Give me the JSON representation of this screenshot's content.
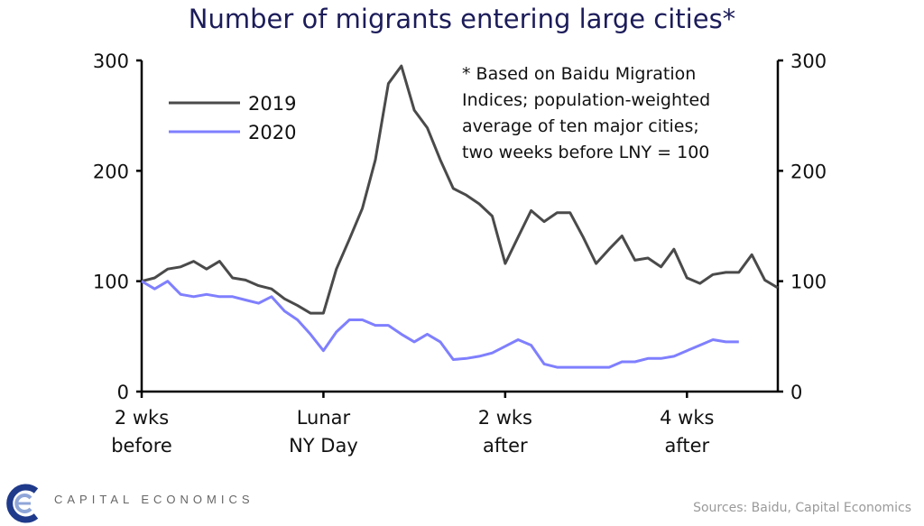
{
  "chart_data": {
    "type": "line",
    "title": "Number of migrants entering large cities*",
    "xlabel": "",
    "ylabel": "",
    "ylim": [
      0,
      300
    ],
    "xlim": [
      0,
      49
    ],
    "yticks": [
      0,
      100,
      200,
      300
    ],
    "xticks": [
      {
        "x": 0,
        "label": [
          "2 wks",
          "before"
        ]
      },
      {
        "x": 14,
        "label": [
          "Lunar",
          "NY Day"
        ]
      },
      {
        "x": 28,
        "label": [
          "2 wks",
          "after"
        ]
      },
      {
        "x": 42,
        "label": [
          "4 wks",
          "after"
        ]
      }
    ],
    "grid": false,
    "legend_position": "top-left",
    "series": [
      {
        "name": "2019",
        "color": "#4a4a4a",
        "values": [
          100,
          103,
          111,
          113,
          118,
          111,
          118,
          103,
          101,
          96,
          93,
          84,
          78,
          71,
          71,
          111,
          138,
          166,
          210,
          279,
          295,
          255,
          239,
          210,
          184,
          178,
          170,
          159,
          116,
          140,
          164,
          154,
          162,
          162,
          140,
          116,
          129,
          141,
          119,
          121,
          113,
          129,
          103,
          98,
          106,
          108,
          108,
          124,
          101,
          94
        ]
      },
      {
        "name": "2020",
        "color": "#7f7fff",
        "values": [
          100,
          93,
          100,
          88,
          86,
          88,
          86,
          86,
          83,
          80,
          86,
          73,
          65,
          52,
          37,
          54,
          65,
          65,
          60,
          60,
          52,
          45,
          52,
          45,
          29,
          30,
          32,
          35,
          41,
          47,
          42,
          25,
          22,
          22,
          22,
          22,
          22,
          27,
          27,
          30,
          30,
          32,
          37,
          42,
          47,
          45,
          45
        ]
      }
    ],
    "annotation": [
      "* Based on Baidu Migration",
      "Indices; population-weighted",
      "average of ten major cities;",
      "two weeks before LNY = 100"
    ]
  },
  "footer": {
    "brand": "CAPITAL ECONOMICS",
    "sources": "Sources: Baidu, Capital Economics"
  }
}
